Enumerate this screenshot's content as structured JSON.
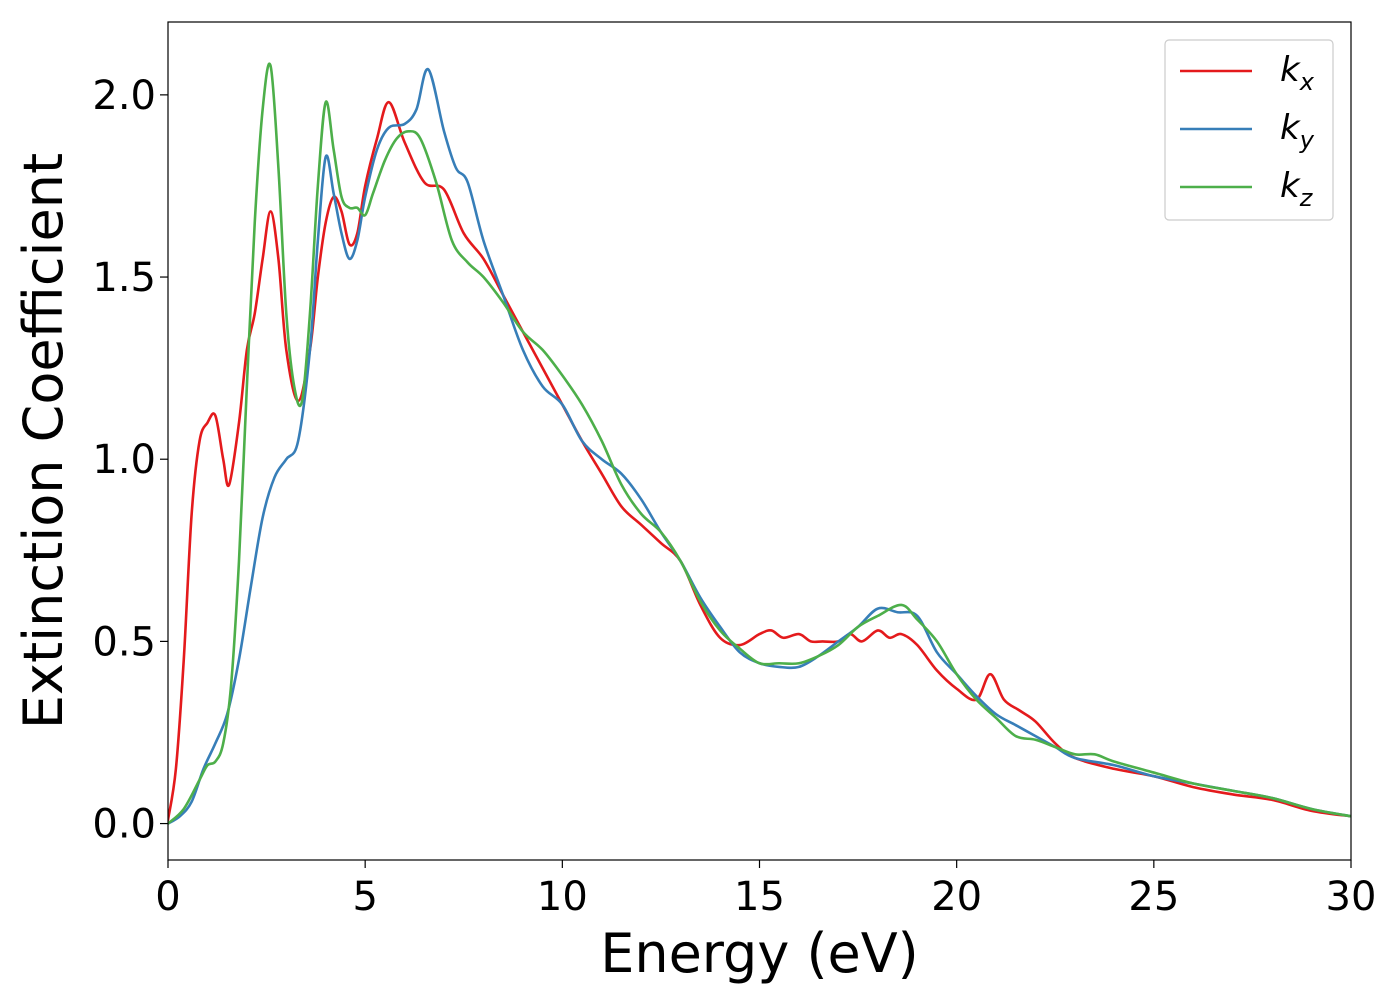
{
  "chart_data": {
    "type": "line",
    "title": "",
    "xlabel": "Energy (eV)",
    "ylabel": "Extinction Coefficient",
    "xlim": [
      0,
      30
    ],
    "ylim": [
      -0.1,
      2.2
    ],
    "xticks": [
      0,
      5,
      10,
      15,
      20,
      25,
      30
    ],
    "xtick_labels": [
      "0",
      "5",
      "10",
      "15",
      "20",
      "25",
      "30"
    ],
    "yticks": [
      0.0,
      0.5,
      1.0,
      1.5,
      2.0
    ],
    "ytick_labels": [
      "0.0",
      "0.5",
      "1.0",
      "1.5",
      "2.0"
    ],
    "grid": false,
    "legend_position": "top-right",
    "series": [
      {
        "name": "k",
        "name_sub": "x",
        "color": "#e41a1c",
        "x": [
          0.0,
          0.2,
          0.4,
          0.6,
          0.8,
          1.0,
          1.2,
          1.4,
          1.55,
          1.8,
          2.0,
          2.2,
          2.4,
          2.6,
          2.8,
          3.0,
          3.3,
          3.6,
          3.8,
          4.0,
          4.2,
          4.4,
          4.6,
          4.8,
          5.0,
          5.3,
          5.6,
          6.0,
          6.5,
          7.0,
          7.5,
          8.0,
          8.5,
          9.0,
          9.5,
          10.0,
          10.5,
          11.0,
          11.5,
          12.0,
          12.5,
          13.0,
          13.5,
          14.0,
          14.5,
          15.0,
          15.3,
          15.6,
          16.0,
          16.3,
          16.6,
          17.0,
          17.3,
          17.6,
          18.0,
          18.3,
          18.6,
          19.0,
          19.5,
          20.0,
          20.5,
          20.85,
          21.2,
          21.6,
          22.0,
          22.5,
          23.0,
          24.0,
          25.0,
          26.0,
          27.0,
          28.0,
          29.0,
          30.0
        ],
        "y": [
          0.01,
          0.15,
          0.45,
          0.85,
          1.05,
          1.1,
          1.12,
          1.0,
          0.93,
          1.1,
          1.3,
          1.4,
          1.55,
          1.68,
          1.55,
          1.3,
          1.16,
          1.3,
          1.5,
          1.65,
          1.72,
          1.68,
          1.59,
          1.62,
          1.75,
          1.88,
          1.98,
          1.87,
          1.76,
          1.74,
          1.62,
          1.55,
          1.45,
          1.35,
          1.25,
          1.15,
          1.05,
          0.96,
          0.87,
          0.82,
          0.77,
          0.72,
          0.6,
          0.51,
          0.49,
          0.52,
          0.53,
          0.51,
          0.52,
          0.5,
          0.5,
          0.5,
          0.52,
          0.5,
          0.53,
          0.51,
          0.52,
          0.49,
          0.42,
          0.37,
          0.34,
          0.41,
          0.34,
          0.31,
          0.28,
          0.22,
          0.18,
          0.15,
          0.13,
          0.1,
          0.08,
          0.065,
          0.035,
          0.02
        ]
      },
      {
        "name": "k",
        "name_sub": "y",
        "color": "#377eb8",
        "x": [
          0.0,
          0.3,
          0.6,
          0.9,
          1.2,
          1.5,
          1.8,
          2.1,
          2.4,
          2.7,
          3.0,
          3.3,
          3.6,
          3.8,
          4.0,
          4.2,
          4.4,
          4.6,
          4.8,
          5.0,
          5.3,
          5.6,
          6.0,
          6.3,
          6.6,
          7.0,
          7.3,
          7.6,
          8.0,
          8.5,
          9.0,
          9.5,
          10.0,
          10.5,
          11.0,
          11.5,
          12.0,
          12.5,
          13.0,
          13.5,
          14.0,
          14.5,
          15.0,
          15.5,
          16.0,
          16.5,
          17.0,
          17.5,
          18.0,
          18.5,
          19.0,
          19.5,
          20.0,
          20.5,
          21.0,
          21.5,
          22.0,
          22.5,
          23.0,
          24.0,
          25.0,
          26.0,
          27.0,
          28.0,
          29.0,
          30.0
        ],
        "y": [
          0.0,
          0.02,
          0.06,
          0.15,
          0.22,
          0.3,
          0.45,
          0.65,
          0.84,
          0.95,
          1.0,
          1.05,
          1.3,
          1.6,
          1.83,
          1.73,
          1.62,
          1.55,
          1.6,
          1.72,
          1.85,
          1.91,
          1.92,
          1.96,
          2.07,
          1.9,
          1.8,
          1.76,
          1.6,
          1.45,
          1.3,
          1.2,
          1.15,
          1.05,
          1.0,
          0.96,
          0.89,
          0.8,
          0.72,
          0.62,
          0.54,
          0.47,
          0.44,
          0.43,
          0.43,
          0.46,
          0.5,
          0.54,
          0.59,
          0.58,
          0.57,
          0.47,
          0.41,
          0.35,
          0.3,
          0.27,
          0.24,
          0.21,
          0.18,
          0.16,
          0.13,
          0.11,
          0.09,
          0.07,
          0.04,
          0.02
        ]
      },
      {
        "name": "k",
        "name_sub": "z",
        "color": "#4daf4a",
        "x": [
          0.0,
          0.4,
          0.8,
          1.0,
          1.2,
          1.4,
          1.6,
          1.8,
          2.0,
          2.2,
          2.4,
          2.6,
          2.8,
          3.0,
          3.2,
          3.4,
          3.6,
          3.8,
          4.0,
          4.2,
          4.4,
          4.6,
          4.8,
          5.0,
          5.2,
          5.5,
          5.8,
          6.1,
          6.4,
          6.8,
          7.2,
          7.6,
          8.0,
          8.5,
          9.0,
          9.5,
          10.0,
          10.5,
          11.0,
          11.5,
          12.0,
          12.5,
          13.0,
          13.5,
          14.0,
          14.5,
          15.0,
          15.5,
          16.0,
          16.5,
          17.0,
          17.5,
          18.0,
          18.6,
          19.0,
          19.5,
          20.0,
          20.5,
          21.0,
          21.5,
          22.0,
          22.5,
          23.0,
          23.5,
          24.0,
          25.0,
          26.0,
          27.0,
          28.0,
          29.0,
          30.0
        ],
        "y": [
          0.0,
          0.04,
          0.12,
          0.16,
          0.17,
          0.22,
          0.38,
          0.72,
          1.2,
          1.65,
          1.96,
          2.08,
          1.8,
          1.4,
          1.2,
          1.16,
          1.4,
          1.75,
          1.98,
          1.85,
          1.72,
          1.69,
          1.69,
          1.67,
          1.73,
          1.82,
          1.88,
          1.9,
          1.88,
          1.76,
          1.6,
          1.54,
          1.5,
          1.43,
          1.35,
          1.3,
          1.23,
          1.15,
          1.05,
          0.93,
          0.85,
          0.8,
          0.72,
          0.61,
          0.53,
          0.48,
          0.44,
          0.44,
          0.44,
          0.46,
          0.49,
          0.54,
          0.57,
          0.6,
          0.56,
          0.5,
          0.41,
          0.34,
          0.29,
          0.24,
          0.23,
          0.21,
          0.19,
          0.19,
          0.17,
          0.14,
          0.11,
          0.09,
          0.07,
          0.04,
          0.02
        ]
      }
    ]
  }
}
